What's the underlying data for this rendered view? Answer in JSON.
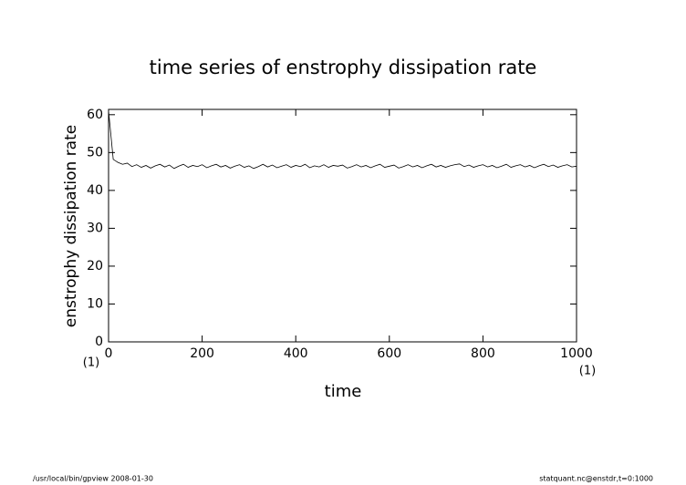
{
  "chart_data": {
    "type": "line",
    "title": "time series of enstrophy dissipation rate",
    "xlabel": "time",
    "ylabel": "enstrophy dissipation rate",
    "xunit": "(1)",
    "yunit": "(1)",
    "x": [
      0,
      10,
      20,
      30,
      40,
      50,
      60,
      70,
      80,
      90,
      100,
      110,
      120,
      130,
      140,
      150,
      160,
      170,
      180,
      190,
      200,
      210,
      220,
      230,
      240,
      250,
      260,
      270,
      280,
      290,
      300,
      310,
      320,
      330,
      340,
      350,
      360,
      370,
      380,
      390,
      400,
      410,
      420,
      430,
      440,
      450,
      460,
      470,
      480,
      490,
      500,
      510,
      520,
      530,
      540,
      550,
      560,
      570,
      580,
      590,
      600,
      610,
      620,
      630,
      640,
      650,
      660,
      670,
      680,
      690,
      700,
      710,
      720,
      730,
      740,
      750,
      760,
      770,
      780,
      790,
      800,
      810,
      820,
      830,
      840,
      850,
      860,
      870,
      880,
      890,
      900,
      910,
      920,
      930,
      940,
      950,
      960,
      970,
      980,
      990,
      1000
    ],
    "values": [
      61,
      48.2,
      47.4,
      46.9,
      47.2,
      46.3,
      46.8,
      46.1,
      46.6,
      45.9,
      46.5,
      46.9,
      46.2,
      46.7,
      45.8,
      46.4,
      46.9,
      46.1,
      46.6,
      46.3,
      46.8,
      46.0,
      46.5,
      46.9,
      46.2,
      46.6,
      45.9,
      46.4,
      46.8,
      46.1,
      46.5,
      45.8,
      46.3,
      46.9,
      46.2,
      46.7,
      46.0,
      46.4,
      46.8,
      46.1,
      46.6,
      46.3,
      46.9,
      46.0,
      46.5,
      46.2,
      46.8,
      46.1,
      46.6,
      46.4,
      46.7,
      45.9,
      46.3,
      46.8,
      46.2,
      46.6,
      46.0,
      46.5,
      46.9,
      46.1,
      46.4,
      46.7,
      45.9,
      46.3,
      46.8,
      46.2,
      46.6,
      46.0,
      46.5,
      46.9,
      46.2,
      46.6,
      46.1,
      46.5,
      46.8,
      47.0,
      46.3,
      46.7,
      46.1,
      46.5,
      46.8,
      46.2,
      46.6,
      46.0,
      46.4,
      46.9,
      46.1,
      46.5,
      46.8,
      46.2,
      46.6,
      46.0,
      46.5,
      46.9,
      46.3,
      46.7,
      46.1,
      46.5,
      46.8,
      46.2,
      46.4
    ],
    "color": "#000000",
    "xlim": [
      0,
      1000
    ],
    "xticks": [
      0,
      200,
      400,
      600,
      800,
      1000
    ],
    "ylim": [
      0,
      61.4
    ],
    "yticks": [
      0,
      10,
      20,
      30,
      40,
      50,
      60
    ]
  },
  "footer": {
    "left": "/usr/local/bin/gpview   2008-01-30",
    "right": "statquant.nc@enstdr,t=0:1000"
  }
}
